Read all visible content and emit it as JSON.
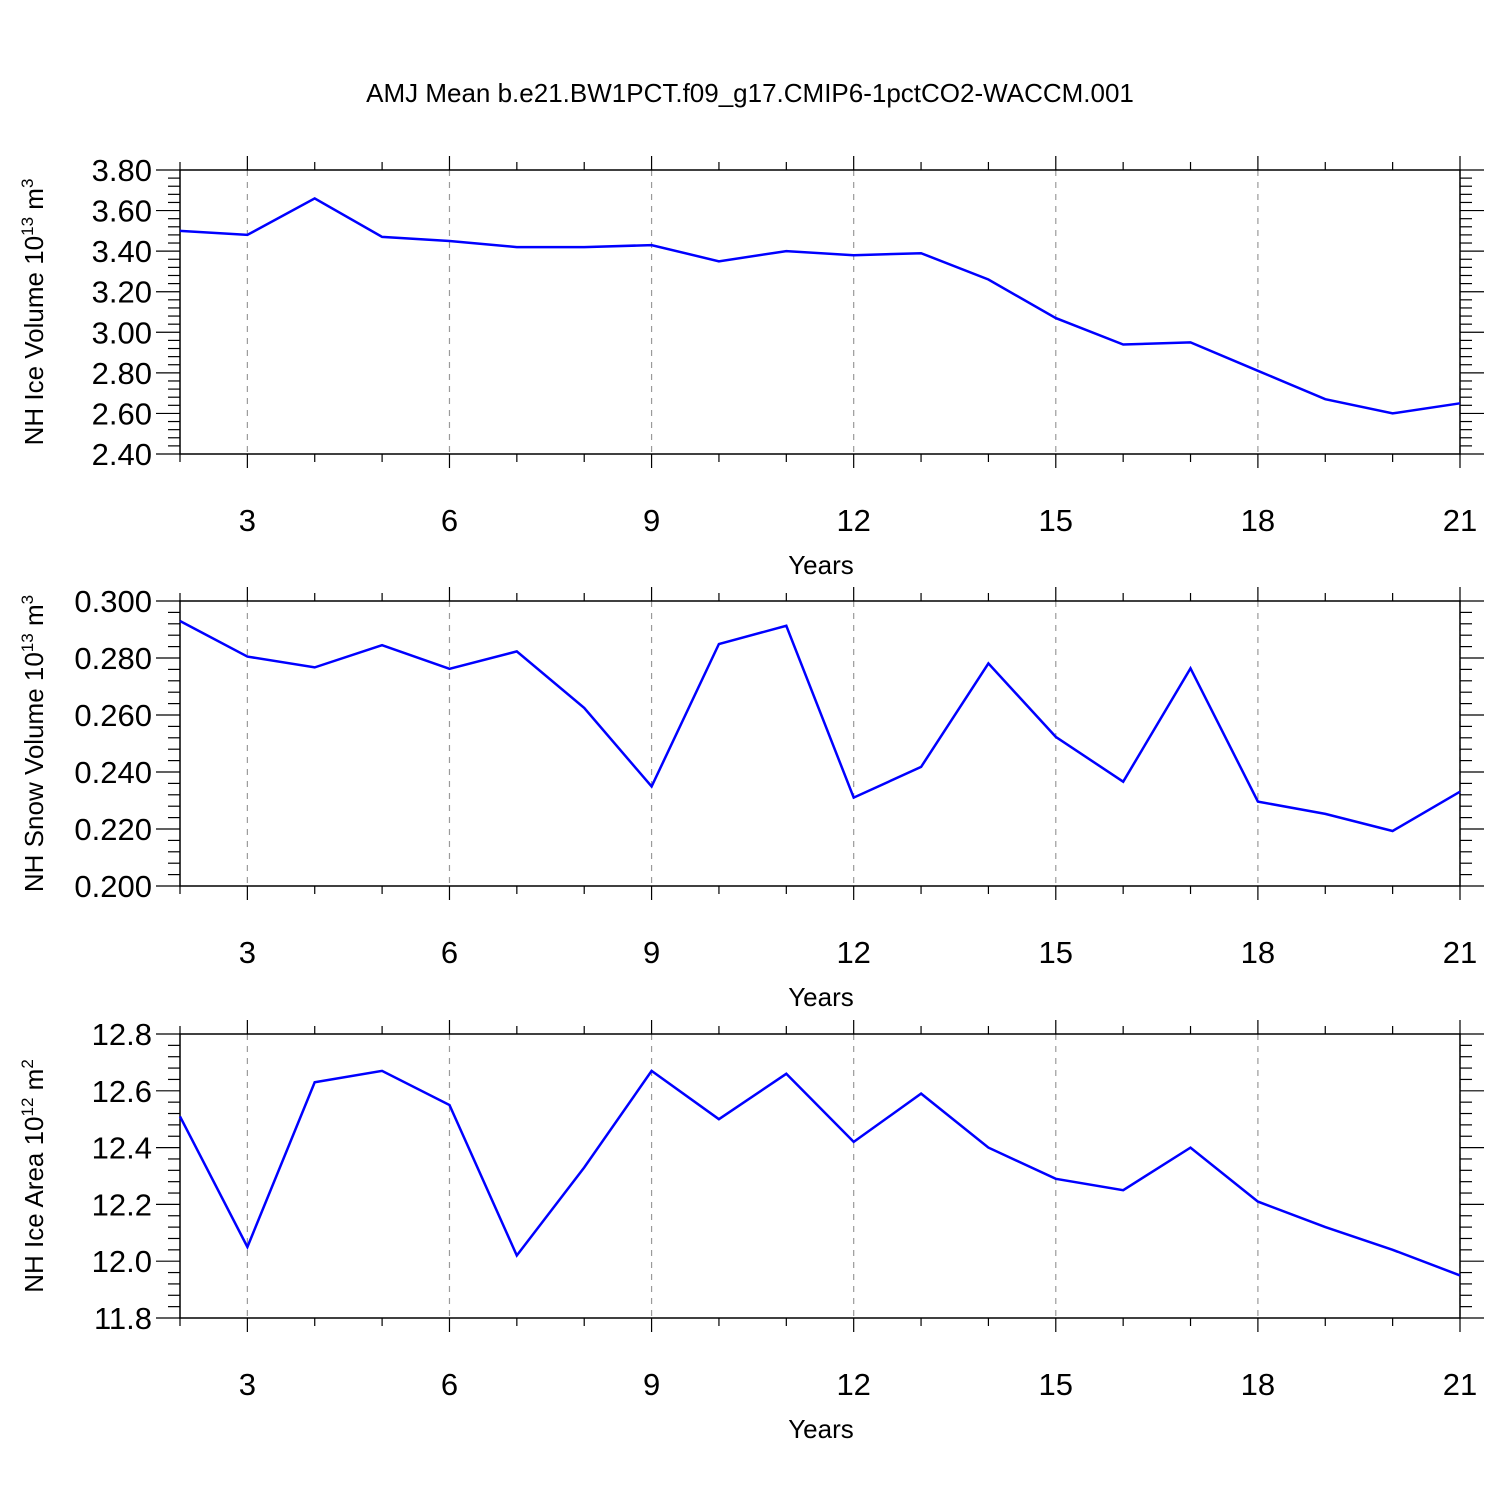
{
  "figure_title": "AMJ Mean b.e21.BW1PCT.f09_g17.CMIP6-1pctCO2-WACCM.001",
  "colors": {
    "line": "#0000ff",
    "frame": "#000000",
    "grid": "#9a9a9a"
  },
  "chart_data": [
    {
      "type": "line",
      "title": "AMJ Mean b.e21.BW1PCT.f09_g17.CMIP6-1pctCO2-WACCM.001",
      "xlabel": "Years",
      "ylabel": {
        "base": "NH Ice Volume 10",
        "sup": "13",
        "unit": " m",
        "unit_sup": "3"
      },
      "xlim": [
        2,
        21
      ],
      "ylim": [
        2.4,
        3.8
      ],
      "xticks": [
        3,
        6,
        9,
        12,
        15,
        18,
        21
      ],
      "yticks": [
        2.4,
        2.6,
        2.8,
        3.0,
        3.2,
        3.4,
        3.6,
        3.8
      ],
      "ytick_labels": [
        "2.40",
        "2.60",
        "2.80",
        "3.00",
        "3.20",
        "3.40",
        "3.60",
        "3.80"
      ],
      "grid": "vertical dashed at major x ticks",
      "x": [
        2,
        3,
        4,
        5,
        6,
        7,
        8,
        9,
        10,
        11,
        12,
        13,
        14,
        15,
        16,
        17,
        18,
        19,
        20,
        21
      ],
      "values": [
        3.5,
        3.48,
        3.66,
        3.47,
        3.45,
        3.42,
        3.42,
        3.43,
        3.35,
        3.4,
        3.38,
        3.39,
        3.26,
        3.07,
        2.94,
        2.95,
        2.81,
        2.67,
        2.6,
        2.65
      ]
    },
    {
      "type": "line",
      "xlabel": "Years",
      "ylabel": {
        "base": "NH Snow Volume 10",
        "sup": "13",
        "unit": " m",
        "unit_sup": "3"
      },
      "xlim": [
        2,
        21
      ],
      "ylim": [
        0.2,
        0.3
      ],
      "xticks": [
        3,
        6,
        9,
        12,
        15,
        18,
        21
      ],
      "yticks": [
        0.2,
        0.22,
        0.24,
        0.26,
        0.28,
        0.3
      ],
      "ytick_labels": [
        "0.200",
        "0.220",
        "0.240",
        "0.260",
        "0.280",
        "0.300"
      ],
      "grid": "vertical dashed at major x ticks",
      "x": [
        2,
        3,
        4,
        5,
        6,
        7,
        8,
        9,
        10,
        11,
        12,
        13,
        14,
        15,
        16,
        17,
        18,
        19,
        20,
        21
      ],
      "values": [
        0.293,
        0.2805,
        0.2767,
        0.2845,
        0.2762,
        0.2823,
        0.2625,
        0.2349,
        0.2849,
        0.2913,
        0.231,
        0.2418,
        0.2781,
        0.2523,
        0.2366,
        0.2764,
        0.2296,
        0.2253,
        0.2193,
        0.2331
      ]
    },
    {
      "type": "line",
      "xlabel": "Years",
      "ylabel": {
        "base": "NH Ice Area 10",
        "sup": "12",
        "unit": " m",
        "unit_sup": "2"
      },
      "xlim": [
        2,
        21
      ],
      "ylim": [
        11.8,
        12.8
      ],
      "xticks": [
        3,
        6,
        9,
        12,
        15,
        18,
        21
      ],
      "yticks": [
        11.8,
        12.0,
        12.2,
        12.4,
        12.6,
        12.8
      ],
      "ytick_labels": [
        "11.8",
        "12.0",
        "12.2",
        "12.4",
        "12.6",
        "12.8"
      ],
      "grid": "vertical dashed at major x ticks",
      "x": [
        2,
        3,
        4,
        5,
        6,
        7,
        8,
        9,
        10,
        11,
        12,
        13,
        14,
        15,
        16,
        17,
        18,
        19,
        20,
        21
      ],
      "values": [
        12.51,
        12.05,
        12.63,
        12.67,
        12.55,
        12.02,
        12.33,
        12.67,
        12.5,
        12.66,
        12.42,
        12.59,
        12.4,
        12.29,
        12.25,
        12.4,
        12.21,
        12.12,
        12.04,
        11.95
      ]
    }
  ]
}
